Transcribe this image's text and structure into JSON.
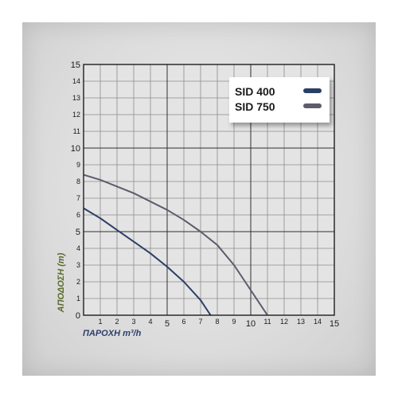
{
  "chart_data": {
    "type": "line",
    "xlabel": "ΠΑΡΟΧΗ m³/h",
    "ylabel": "ΑΠΟΔΟΣΗ (m)",
    "xlim": [
      0,
      15
    ],
    "ylim": [
      0,
      15
    ],
    "x_ticks": [
      "1",
      "2",
      "3",
      "4",
      "5",
      "6",
      "7",
      "8",
      "9",
      "10",
      "11",
      "12",
      "13",
      "14",
      "15"
    ],
    "y_ticks": [
      "0",
      "1",
      "2",
      "3",
      "4",
      "5",
      "6",
      "7",
      "8",
      "9",
      "10",
      "11",
      "12",
      "13",
      "14",
      "15"
    ],
    "grid": true,
    "legend_position": "top-right",
    "series": [
      {
        "name": "SID 400",
        "color": "#2b3f66",
        "x": [
          0,
          1,
          2,
          3,
          4,
          5,
          6,
          7,
          7.6
        ],
        "y": [
          6.4,
          5.8,
          5.1,
          4.4,
          3.7,
          2.9,
          2.0,
          0.9,
          0
        ]
      },
      {
        "name": "SID 750",
        "color": "#5f5a6c",
        "x": [
          0,
          1,
          2,
          3,
          4,
          5,
          6,
          7,
          8,
          9,
          10,
          11
        ],
        "y": [
          8.4,
          8.1,
          7.7,
          7.3,
          6.8,
          6.3,
          5.7,
          5.0,
          4.2,
          3.0,
          1.5,
          0
        ]
      }
    ]
  }
}
